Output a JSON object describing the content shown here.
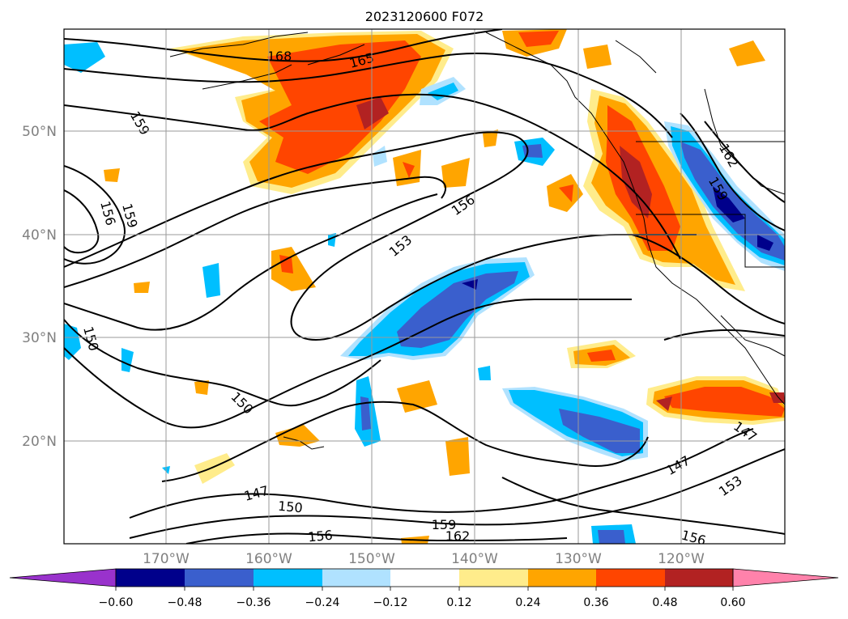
{
  "map": {
    "title": "2023120600 F072",
    "lat_labels": [
      "50°N",
      "40°N",
      "30°N",
      "20°N"
    ],
    "lon_labels": [
      "170°W",
      "160°W",
      "150°W",
      "140°W",
      "130°W",
      "120°W"
    ],
    "contour_labels": [
      "168",
      "165",
      "159",
      "156",
      "159",
      "156",
      "153",
      "150",
      "150",
      "147",
      "150",
      "159",
      "156",
      "162",
      "147",
      "153",
      "156",
      "147",
      "162",
      "159"
    ]
  },
  "colorbar": {
    "tick_labels": [
      "−0.60",
      "−0.48",
      "−0.36",
      "−0.24",
      "−0.12",
      "0.12",
      "0.24",
      "0.36",
      "0.48",
      "0.60"
    ],
    "colors": [
      "#9932cc",
      "#00008b",
      "#3a5fcd",
      "#00bfff",
      "#b0e2ff",
      "#ffffff",
      "#ffec8b",
      "#ffa500",
      "#ff4500",
      "#b22222",
      "#ff82ab"
    ]
  }
}
